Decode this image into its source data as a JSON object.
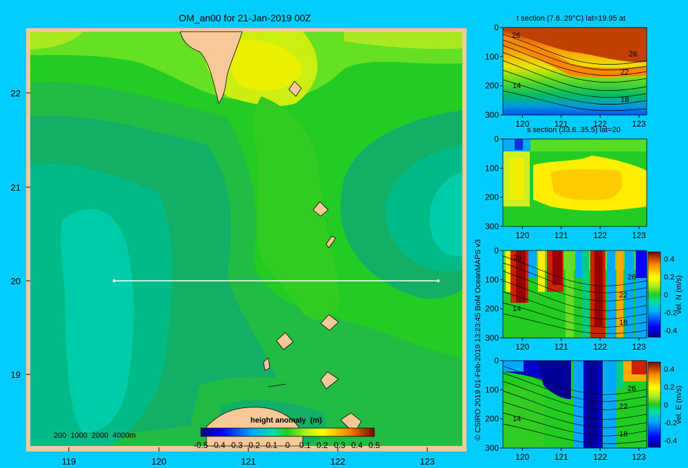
{
  "colors": {
    "background": "#00ccff",
    "land": "#f7c898",
    "section_line": "#ffffff"
  },
  "main_map": {
    "title": "OM_an00 for 21-Jan-2019 00Z",
    "y_ticks": [
      "22",
      "21",
      "20",
      "19"
    ],
    "x_ticks": [
      "119",
      "120",
      "121",
      "122",
      "123"
    ],
    "depth_legend": "200  1000  2000  4000m",
    "colorbar_title": "height anomaly  (m)",
    "colorbar_ticks": [
      "-0.5",
      "-0.4",
      "-0.3",
      "-0.2",
      "-0.1",
      "0",
      "0.1",
      "0.2",
      "0.3",
      "0.4",
      "0.5"
    ]
  },
  "side_label": "© CSIRO 2019   01-Feb-2019 13:23:45 BoM OceanMAPS v3",
  "panels": [
    {
      "title": "t section (7.6..29°C) lat=19.95 at",
      "y_ticks": [
        "0",
        "100",
        "200",
        "300"
      ],
      "x_ticks": [
        "120",
        "121",
        "122",
        "123"
      ],
      "contour_labels": [
        "26",
        "26",
        "22",
        "14",
        "18"
      ]
    },
    {
      "title": "s section (33.6..35.5) lat=20",
      "y_ticks": [
        "0",
        "100",
        "200",
        "300"
      ],
      "x_ticks": [
        "120",
        "121",
        "122",
        "123"
      ]
    },
    {
      "y_ticks": [
        "0",
        "100",
        "200",
        "300"
      ],
      "x_ticks": [
        "120",
        "121",
        "122",
        "123"
      ],
      "contour_labels": [
        "26",
        "26",
        "22",
        "14",
        "18"
      ],
      "colorbar_ticks": [
        "0.4",
        "0.2",
        "0",
        "-0.2",
        "-0.4"
      ],
      "colorbar_label": "vel. N (m/s)"
    },
    {
      "y_ticks": [
        "0",
        "100",
        "200",
        "300"
      ],
      "x_ticks": [
        "120",
        "121",
        "122",
        "123"
      ],
      "contour_labels": [
        "26",
        "22",
        "14",
        "18"
      ],
      "colorbar_ticks": [
        "0.4",
        "0.2",
        "0",
        "-0.2",
        "-0.4"
      ],
      "colorbar_label": "vel. E (m/s)"
    }
  ],
  "chart_data": [
    {
      "type": "heatmap",
      "title": "OM_an00 for 21-Jan-2019 00Z",
      "xlim": [
        118.5,
        123.5
      ],
      "ylim": [
        18.3,
        22.7
      ],
      "x_ticks": [
        119,
        120,
        121,
        122,
        123
      ],
      "y_ticks": [
        19,
        20,
        21,
        22
      ],
      "colorbar": {
        "label": "height anomaly  (m)",
        "range": [
          -0.5,
          0.5
        ]
      },
      "section_line": {
        "lat": 20,
        "lon_start": 119.5,
        "lon_end": 123.2
      }
    },
    {
      "type": "heatmap",
      "title": "t section (7.6..29°C) lat=19.95 at",
      "xlim": [
        119.5,
        123.2
      ],
      "ylim": [
        300,
        0
      ]
    },
    {
      "type": "heatmap",
      "title": "s section (33.6..35.5) lat=20",
      "xlim": [
        119.5,
        123.2
      ],
      "ylim": [
        300,
        0
      ]
    },
    {
      "type": "heatmap",
      "xlim": [
        119.5,
        123.2
      ],
      "ylim": [
        300,
        0
      ],
      "colorbar": {
        "label": "vel. N (m/s)",
        "range": [
          -0.4,
          0.4
        ]
      }
    },
    {
      "type": "heatmap",
      "xlim": [
        119.5,
        123.2
      ],
      "ylim": [
        300,
        0
      ],
      "colorbar": {
        "label": "vel. E (m/s)",
        "range": [
          -0.4,
          0.4
        ]
      }
    }
  ]
}
